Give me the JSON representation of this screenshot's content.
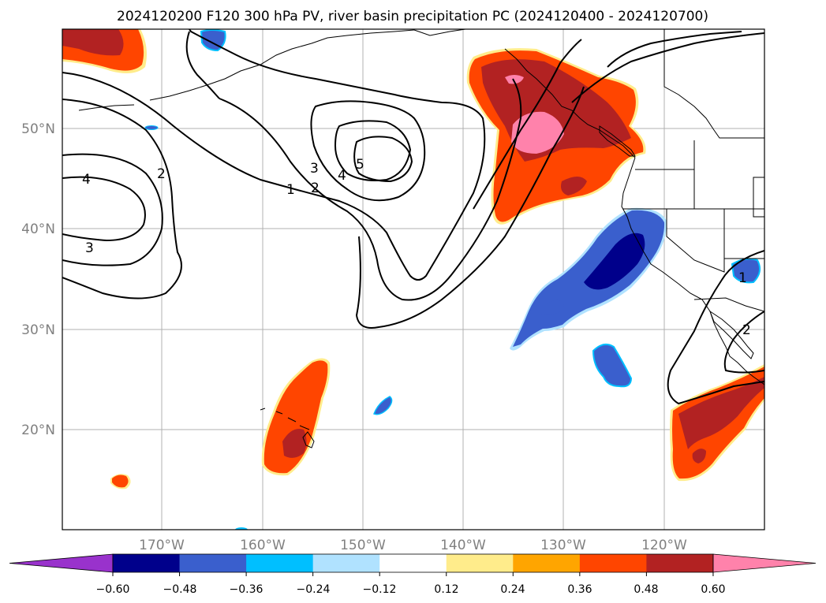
{
  "title": "2024120200 F120 300 hPa PV, river basin precipitation PC (2024120400 - 2024120700)",
  "map": {
    "lat_labels": [
      "50°N",
      "40°N",
      "30°N",
      "20°N"
    ],
    "lon_labels": [
      "170°W",
      "160°W",
      "150°W",
      "140°W",
      "130°W",
      "120°W"
    ],
    "gridlines": true
  },
  "contour_labels": [
    "4",
    "2",
    "3",
    "1",
    "2",
    "3",
    "4",
    "5",
    "1",
    "2"
  ],
  "colorbar": {
    "ticks": [
      "−0.60",
      "−0.48",
      "−0.36",
      "−0.24",
      "−0.12",
      "0.12",
      "0.24",
      "0.36",
      "0.48",
      "0.60"
    ],
    "colors": [
      "#9932cc",
      "#00008b",
      "#3a5fcd",
      "#00bfff",
      "#b0e2ff",
      "#ffffff",
      "#ffec8b",
      "#ffa500",
      "#ff4500",
      "#b22222",
      "#ff82ab"
    ]
  },
  "colors": {
    "pos_strong": "#b22222",
    "pos_mid": "#ff4500",
    "pos_max": "#ff82ab",
    "neg_dark": "#00008b",
    "neg_mid": "#3a5fcd",
    "neg_light": "#00bfff",
    "neg_faint": "#b0e2ff",
    "pos_faint": "#ffec8b",
    "pos_light": "#ffa500"
  }
}
